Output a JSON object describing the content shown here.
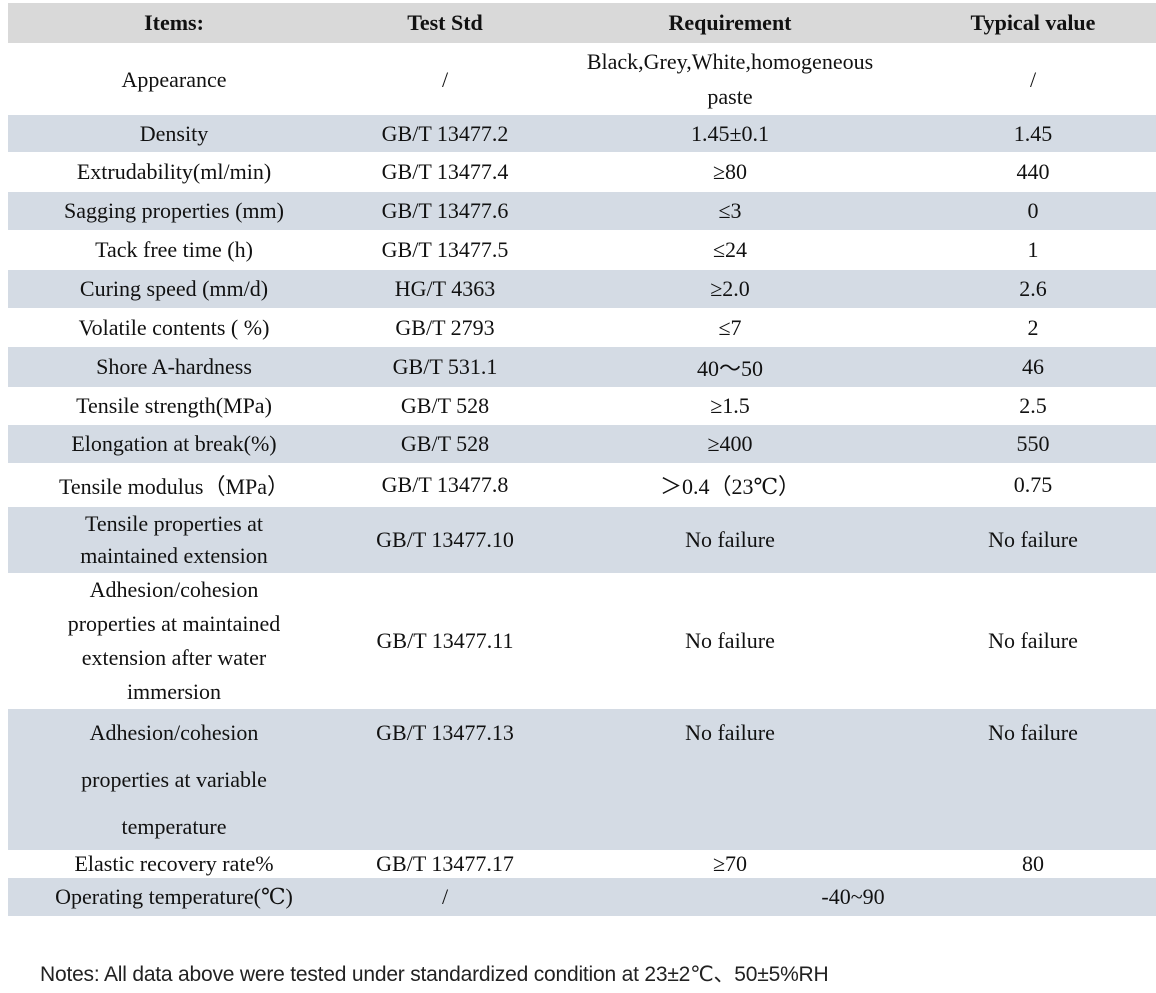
{
  "header": {
    "columns": [
      "Items:",
      "Test Std",
      "Requirement",
      "Typical value"
    ]
  },
  "rows": [
    {
      "item": "Appearance",
      "std": "/",
      "req": "Black,Grey,White,homogeneous paste",
      "typ": "/"
    },
    {
      "item": "Density",
      "std": "GB/T 13477.2",
      "req": "1.45±0.1",
      "typ": "1.45"
    },
    {
      "item": "Extrudability(ml/min)",
      "std": "GB/T 13477.4",
      "req": "≥80",
      "typ": "440"
    },
    {
      "item": "Sagging properties (mm)",
      "std": "GB/T 13477.6",
      "req": "≤3",
      "typ": "0"
    },
    {
      "item": "Tack free time (h)",
      "std": "GB/T 13477.5",
      "req": "≤24",
      "typ": "1"
    },
    {
      "item": "Curing speed (mm/d)",
      "std": "HG/T 4363",
      "req": "≥2.0",
      "typ": "2.6"
    },
    {
      "item": "Volatile contents ( %)",
      "std": "GB/T 2793",
      "req": "≤7",
      "typ": "2"
    },
    {
      "item": "Shore A-hardness",
      "std": "GB/T 531.1",
      "req": "40～50",
      "typ": "46"
    },
    {
      "item": "Tensile strength(MPa)",
      "std": "GB/T 528",
      "req": "≥1.5",
      "typ": "2.5"
    },
    {
      "item": "Elongation at break(%)",
      "std": "GB/T 528",
      "req": "≥400",
      "typ": "550"
    },
    {
      "item": "Tensile modulus（MPa）",
      "std": "GB/T 13477.8",
      "req": "＞0.4（23℃）",
      "typ": "0.75"
    },
    {
      "item": "Tensile properties at maintained extension",
      "std": "GB/T 13477.10",
      "req": "No failure",
      "typ": "No failure"
    },
    {
      "item": "Adhesion/cohesion properties at maintained extension after water immersion",
      "std": "GB/T 13477.11",
      "req": "No failure",
      "typ": "No failure"
    },
    {
      "item": "Adhesion/cohesion properties at variable temperature",
      "std": "GB/T 13477.13",
      "req": "No failure",
      "typ": "No failure"
    },
    {
      "item": "Elastic recovery rate%",
      "std": "GB/T 13477.17",
      "req": "≥70",
      "typ": "80"
    },
    {
      "item": "Operating temperature(℃)",
      "std": "/",
      "req": "-40~90",
      "merged": true
    }
  ],
  "notes": "Notes: All data above were tested under standardized condition at 23±2℃、50±5%RH",
  "colors": {
    "header_bg": "#d9d9d9",
    "shaded_row_bg": "#d4dbe4",
    "text": "#111111"
  }
}
